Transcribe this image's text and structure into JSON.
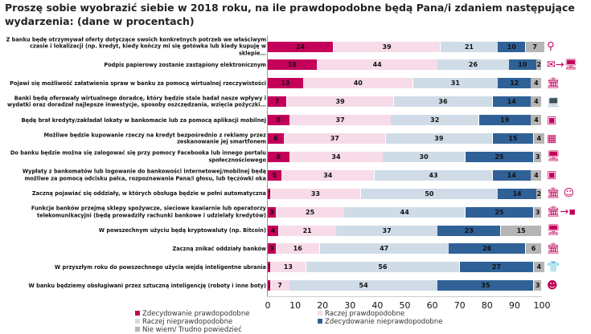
{
  "chart_data": {
    "type": "bar",
    "orientation": "horizontal-stacked",
    "title": "Proszę sobie wyobrazić siebie w 2018 roku, na ile prawdopodobne będą Pana/i zdaniem następujące wydarzenia: (dane w procentach)",
    "xlim": [
      0,
      100
    ],
    "xticks": [
      "0",
      "10",
      "20",
      "30",
      "40",
      "50",
      "60",
      "70",
      "80",
      "90",
      "100"
    ],
    "legend_position": "bottom",
    "categories": [
      "Z banku będę otrzymywał oferty dotyczące swoich konkretnych potrzeb we właściwym czasie i lokalizacji (np. kredyt, kiedy kończy mi się gotówka lub kiedy kupuję w sklepie...",
      "Podpis papierowy zostanie zastąpiony elektronicznym",
      "Pojawi się możliwość załatwienia spraw w banku za pomocą wirtualnej rzeczywistości",
      "Banki będą oferowały wirtualnego doradcę, który będzie stale badał nasze wpływy i wydatki oraz doradzał najlepsze inwestycje, sposoby oszczędzania, wzięcia pożyczki...",
      "Będę brał kredyty/zakładał lokaty w bankomacie lub za pomocą aplikacji mobilnej",
      "Możliwe będzie kupowanie rzeczy na kredyt bezpośrednio z reklamy przez zeskanowanie jej smartfonem",
      "Do banku będzie można się zalogować się przy pomocy Facebooka lub innego portalu społecznościowego",
      "Wypłaty z bankomatów lub logowanie do bankowości internetowej/mobilnej będą możliwe za pomocą odcisku palca, rozpoznawania Pana/i głosu, lub tęczówki oka",
      "Zaczną pojawiać się oddziały, w których obsługa będzie w pełni automatyczna",
      "Funkcje banków przejmą sklepy spożywcze, sieciowe kawiarnie lub operatorzy telekomunikacyjni (będą prowadziły rachunki bankowe i udzielały kredytów)",
      "W powszechnym użyciu będą kryptowaluty (np. Bitcoin)",
      "Zaczną znikać oddziały banków",
      "W przyszłym roku do powszechnego użycia wejdą inteligentne ubrania",
      "W banku będziemy obsługiwani przez sztuczną inteligencję (roboty i inne boty)"
    ],
    "series": [
      {
        "name": "Zdecydowanie prawdopodobne",
        "color": "#c4005a",
        "values": [
          24,
          18,
          13,
          7,
          8,
          6,
          8,
          5,
          1,
          3,
          4,
          3,
          1,
          1
        ]
      },
      {
        "name": "Raczej prawdopodobne",
        "color": "#f7dbe8",
        "values": [
          39,
          44,
          40,
          39,
          37,
          37,
          34,
          34,
          33,
          25,
          21,
          16,
          13,
          7
        ]
      },
      {
        "name": "Raczej nieprawdopodobne",
        "color": "#cfdce8",
        "values": [
          21,
          26,
          31,
          36,
          32,
          39,
          30,
          43,
          50,
          44,
          37,
          47,
          56,
          54
        ]
      },
      {
        "name": "Zdecydowanie nieprawdopodobne",
        "color": "#2f6196",
        "values": [
          10,
          10,
          12,
          14,
          19,
          15,
          25,
          14,
          14,
          25,
          23,
          28,
          27,
          35
        ]
      },
      {
        "name": "Nie wiem/ Trudno powiedzieć",
        "color": "#b5b5b5",
        "values": [
          7,
          2,
          4,
          4,
          4,
          4,
          3,
          4,
          2,
          3,
          15,
          6,
          4,
          3
        ]
      }
    ]
  },
  "icons": [
    "location-globe-icon",
    "signature-to-computer-icon",
    "bank-vr-icon",
    "laptop-advisor-icon",
    "atm-phone-icon",
    "phone-scan-icon",
    "computer-login-icon",
    "safe-fingerprint-icon",
    "bank-brain-icon",
    "bank-to-shops-icon",
    "computer-crypto-icon",
    "bank-closing-icon",
    "smart-clothes-icon",
    "ai-head-icon"
  ]
}
